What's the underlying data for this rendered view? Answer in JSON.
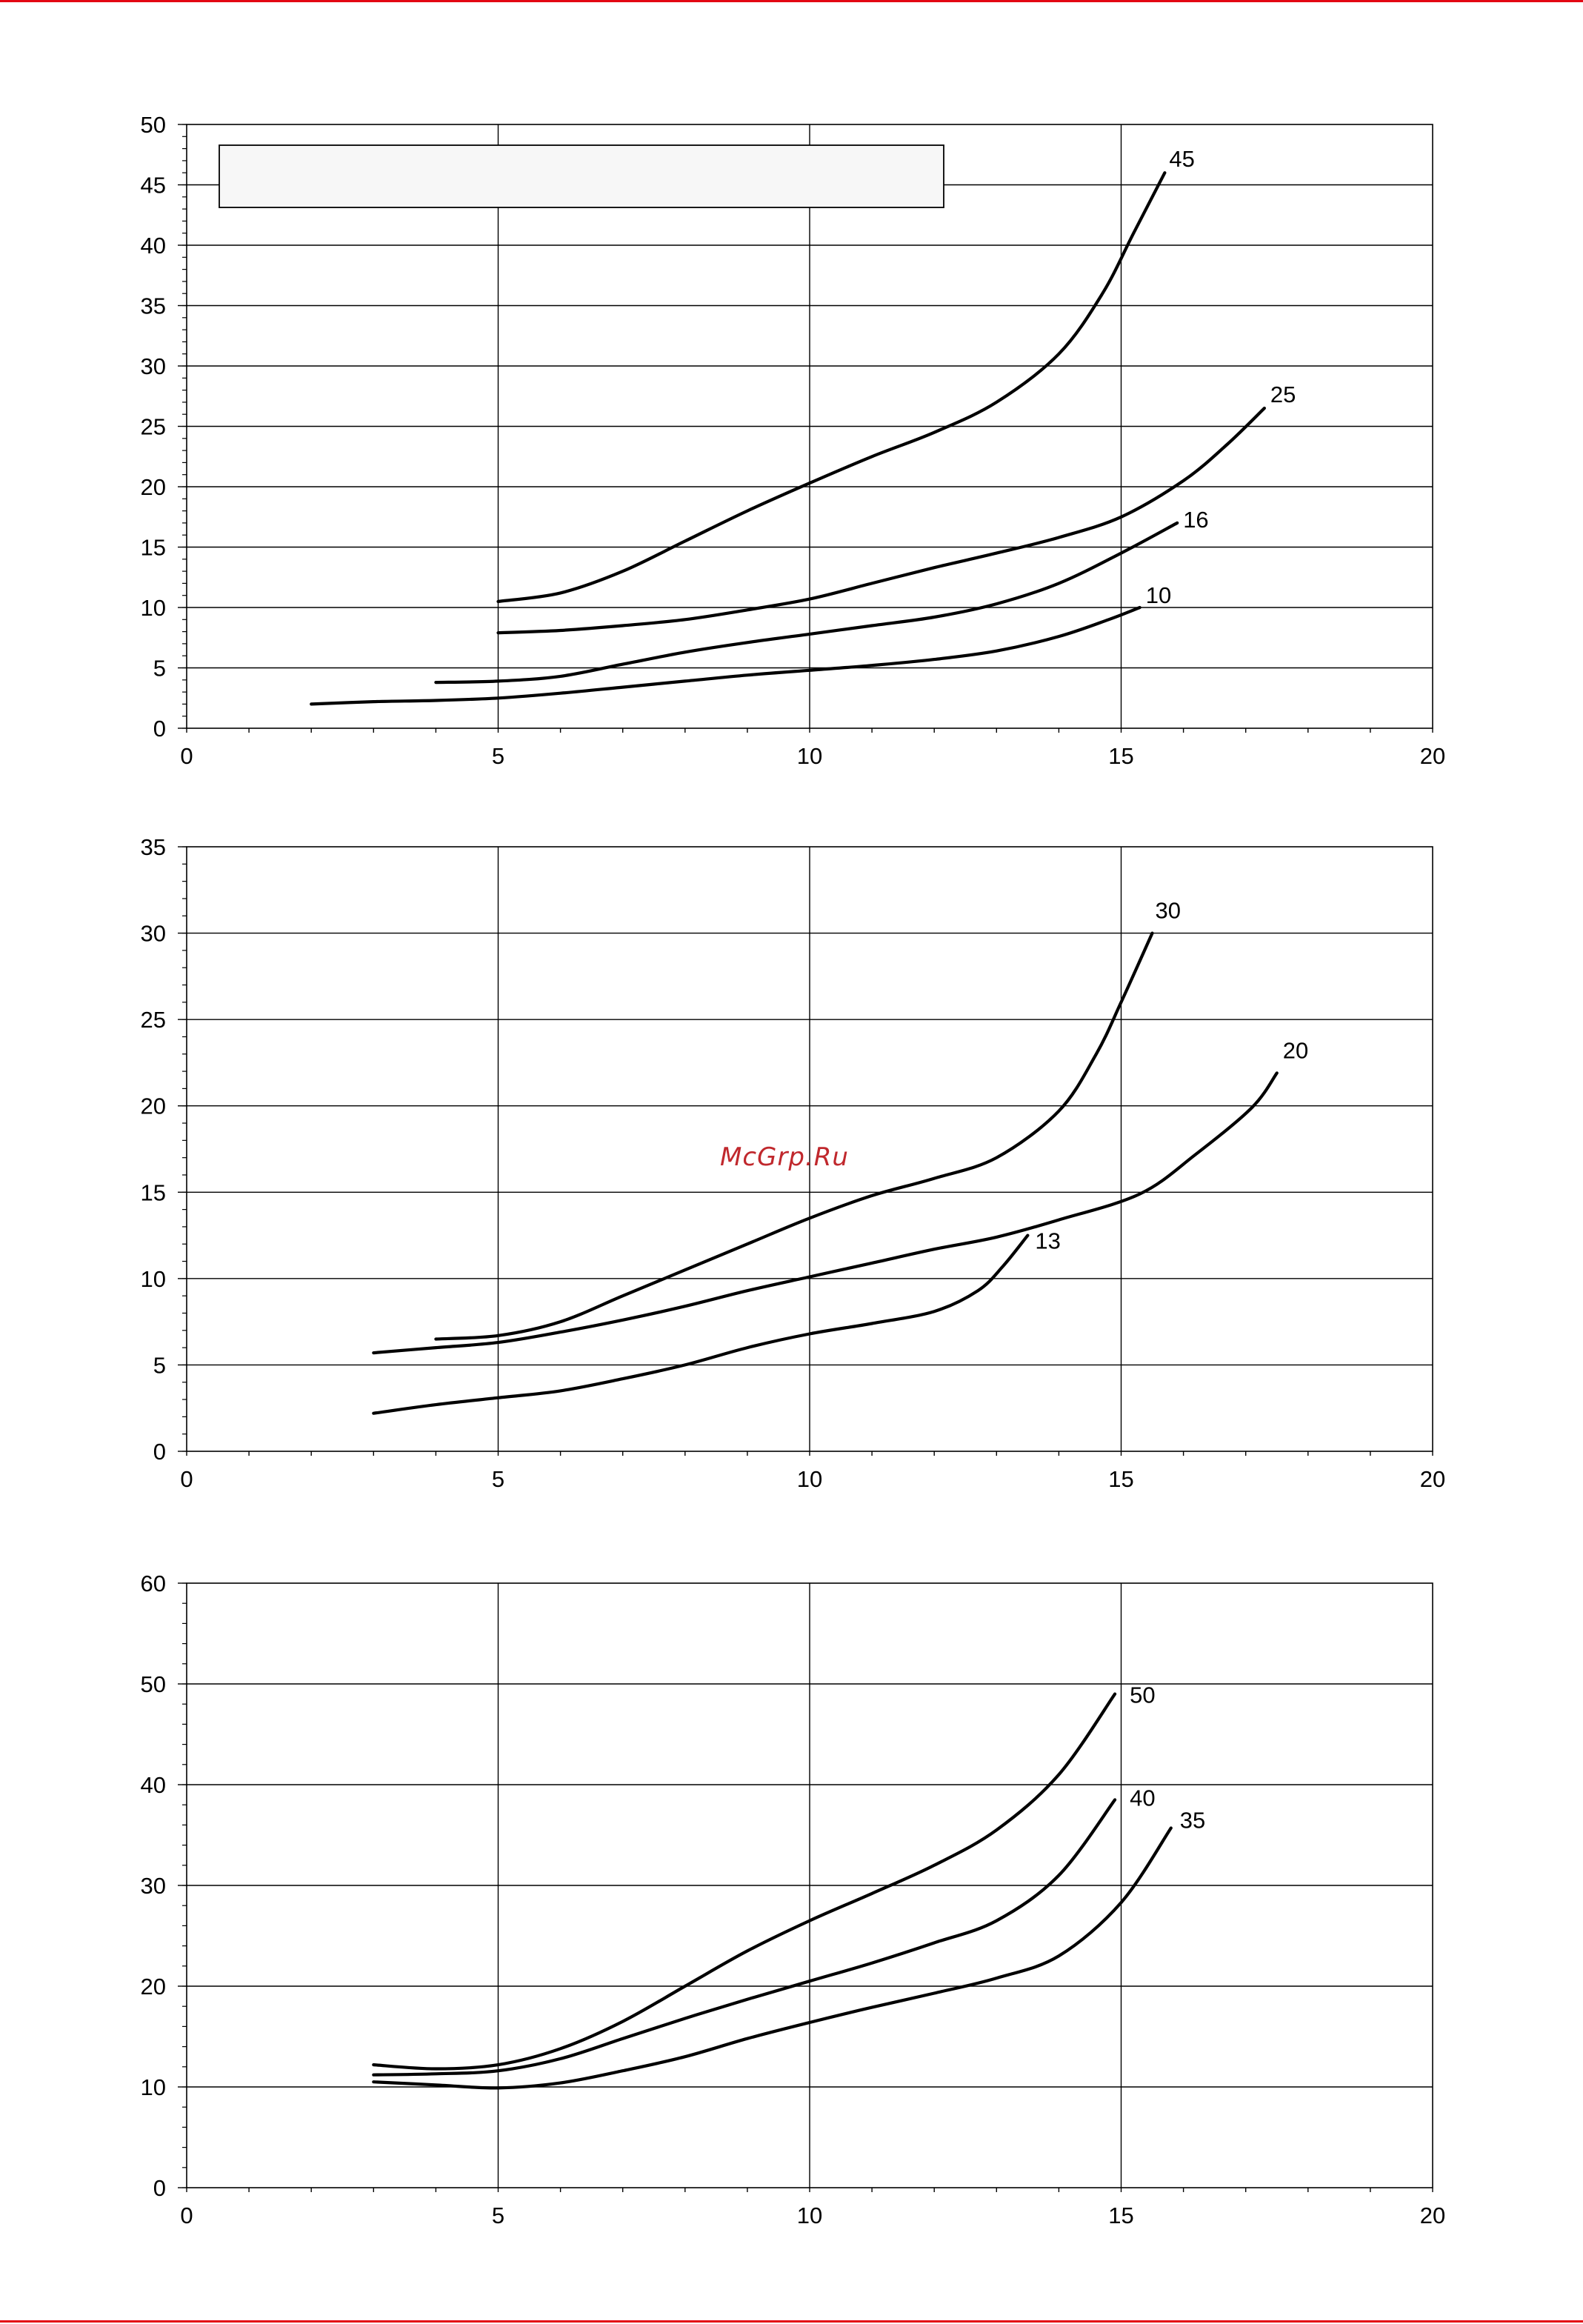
{
  "colors": {
    "rule": "#e30613",
    "watermark": "#c0282d",
    "grid": "#000000",
    "curve": "#000000",
    "legend_box_fill": "#f7f7f7"
  },
  "watermark": {
    "text": "McGrp.Ru"
  },
  "chart_data": [
    {
      "type": "line",
      "xlim": [
        0,
        20
      ],
      "ylim": [
        0,
        50
      ],
      "x_ticks": [
        "0",
        "5",
        "10",
        "15",
        "20"
      ],
      "y_ticks": [
        "0",
        "5",
        "10",
        "15",
        "20",
        "25",
        "30",
        "35",
        "40",
        "45",
        "50"
      ],
      "grid": true,
      "legend_box": true,
      "series": [
        {
          "name": "45",
          "points": [
            [
              5,
              10.5
            ],
            [
              6,
              11.2
            ],
            [
              7,
              13
            ],
            [
              8,
              15.5
            ],
            [
              9,
              18
            ],
            [
              10,
              20.3
            ],
            [
              11,
              22.5
            ],
            [
              12,
              24.5
            ],
            [
              13,
              27
            ],
            [
              14,
              31
            ],
            [
              14.7,
              36
            ],
            [
              15.2,
              41
            ],
            [
              15.7,
              46
            ]
          ]
        },
        {
          "name": "25",
          "points": [
            [
              5,
              7.9
            ],
            [
              6,
              8.1
            ],
            [
              7,
              8.5
            ],
            [
              8,
              9
            ],
            [
              9,
              9.8
            ],
            [
              10,
              10.7
            ],
            [
              11,
              12
            ],
            [
              12,
              13.3
            ],
            [
              13,
              14.5
            ],
            [
              14,
              15.8
            ],
            [
              15,
              17.5
            ],
            [
              16,
              20.5
            ],
            [
              16.7,
              23.5
            ],
            [
              17.3,
              26.5
            ]
          ]
        },
        {
          "name": "16",
          "points": [
            [
              4,
              3.8
            ],
            [
              5,
              3.9
            ],
            [
              6,
              4.3
            ],
            [
              7,
              5.3
            ],
            [
              8,
              6.3
            ],
            [
              9,
              7.1
            ],
            [
              10,
              7.8
            ],
            [
              11,
              8.5
            ],
            [
              12,
              9.2
            ],
            [
              13,
              10.3
            ],
            [
              14,
              12
            ],
            [
              15,
              14.5
            ],
            [
              15.9,
              17
            ]
          ]
        },
        {
          "name": "10",
          "points": [
            [
              2,
              2
            ],
            [
              3,
              2.2
            ],
            [
              4,
              2.3
            ],
            [
              5,
              2.5
            ],
            [
              6,
              2.9
            ],
            [
              7,
              3.4
            ],
            [
              8,
              3.9
            ],
            [
              9,
              4.4
            ],
            [
              10,
              4.8
            ],
            [
              11,
              5.2
            ],
            [
              12,
              5.7
            ],
            [
              13,
              6.4
            ],
            [
              14,
              7.6
            ],
            [
              14.8,
              9
            ],
            [
              15.3,
              10
            ]
          ]
        }
      ]
    },
    {
      "type": "line",
      "xlim": [
        0,
        20
      ],
      "ylim": [
        0,
        35
      ],
      "x_ticks": [
        "0",
        "5",
        "10",
        "15",
        "20"
      ],
      "y_ticks": [
        "0",
        "5",
        "10",
        "15",
        "20",
        "25",
        "30",
        "35"
      ],
      "grid": true,
      "series": [
        {
          "name": "30",
          "points": [
            [
              4,
              6.5
            ],
            [
              5,
              6.7
            ],
            [
              6,
              7.5
            ],
            [
              7,
              9
            ],
            [
              8,
              10.5
            ],
            [
              9,
              12
            ],
            [
              10,
              13.5
            ],
            [
              11,
              14.8
            ],
            [
              12,
              15.8
            ],
            [
              13,
              17
            ],
            [
              14,
              19.7
            ],
            [
              14.6,
              23
            ],
            [
              15,
              26
            ],
            [
              15.5,
              30
            ]
          ]
        },
        {
          "name": "20",
          "points": [
            [
              3,
              5.7
            ],
            [
              4,
              6
            ],
            [
              5,
              6.3
            ],
            [
              6,
              6.9
            ],
            [
              7,
              7.6
            ],
            [
              8,
              8.4
            ],
            [
              9,
              9.3
            ],
            [
              10,
              10.1
            ],
            [
              11,
              10.9
            ],
            [
              12,
              11.7
            ],
            [
              13,
              12.4
            ],
            [
              14,
              13.4
            ],
            [
              15.3,
              14.9
            ],
            [
              16.2,
              17.2
            ],
            [
              17.1,
              19.9
            ],
            [
              17.5,
              21.9
            ]
          ]
        },
        {
          "name": "13",
          "points": [
            [
              3,
              2.2
            ],
            [
              4,
              2.7
            ],
            [
              5,
              3.1
            ],
            [
              6,
              3.5
            ],
            [
              7,
              4.2
            ],
            [
              8,
              5
            ],
            [
              9,
              6
            ],
            [
              10,
              6.8
            ],
            [
              11,
              7.4
            ],
            [
              12,
              8.1
            ],
            [
              12.7,
              9.3
            ],
            [
              13.1,
              10.7
            ],
            [
              13.5,
              12.5
            ]
          ]
        }
      ]
    },
    {
      "type": "line",
      "xlim": [
        0,
        20
      ],
      "ylim": [
        0,
        60
      ],
      "x_ticks": [
        "0",
        "5",
        "10",
        "15",
        "20"
      ],
      "y_ticks": [
        "0",
        "10",
        "20",
        "30",
        "40",
        "50",
        "60"
      ],
      "grid": true,
      "series": [
        {
          "name": "50",
          "points": [
            [
              3,
              12.2
            ],
            [
              4,
              11.8
            ],
            [
              5,
              12.2
            ],
            [
              6,
              13.8
            ],
            [
              7,
              16.5
            ],
            [
              8,
              20
            ],
            [
              9,
              23.5
            ],
            [
              10,
              26.5
            ],
            [
              11,
              29.2
            ],
            [
              12,
              32
            ],
            [
              13,
              35.5
            ],
            [
              14,
              41
            ],
            [
              14.9,
              49
            ]
          ]
        },
        {
          "name": "40",
          "points": [
            [
              3,
              11.2
            ],
            [
              4,
              11.3
            ],
            [
              5,
              11.6
            ],
            [
              6,
              12.8
            ],
            [
              7,
              14.8
            ],
            [
              8,
              16.8
            ],
            [
              9,
              18.7
            ],
            [
              10,
              20.5
            ],
            [
              11,
              22.3
            ],
            [
              12,
              24.3
            ],
            [
              13,
              26.5
            ],
            [
              14,
              31
            ],
            [
              14.9,
              38.5
            ]
          ]
        },
        {
          "name": "35",
          "points": [
            [
              3,
              10.5
            ],
            [
              4,
              10.2
            ],
            [
              5,
              9.9
            ],
            [
              6,
              10.4
            ],
            [
              7,
              11.6
            ],
            [
              8,
              13
            ],
            [
              9,
              14.8
            ],
            [
              10,
              16.4
            ],
            [
              11,
              17.9
            ],
            [
              12,
              19.3
            ],
            [
              13,
              20.8
            ],
            [
              14,
              23
            ],
            [
              15,
              28.3
            ],
            [
              15.8,
              35.7
            ]
          ]
        }
      ]
    }
  ]
}
